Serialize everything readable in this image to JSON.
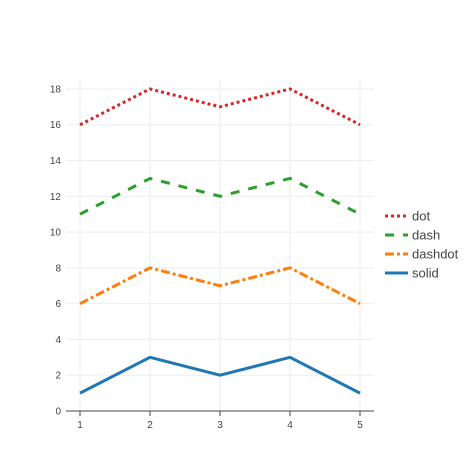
{
  "chart_data": {
    "type": "line",
    "title": "",
    "xlabel": "",
    "ylabel": "",
    "x": [
      1,
      2,
      3,
      4,
      5
    ],
    "xlim": [
      0.8,
      5.2
    ],
    "ylim": [
      0,
      18.5
    ],
    "xticks": [
      1,
      2,
      3,
      4,
      5
    ],
    "yticks": [
      0,
      2,
      4,
      6,
      8,
      10,
      12,
      14,
      16,
      18
    ],
    "grid": true,
    "legend_position": "right",
    "series": [
      {
        "name": "dot",
        "values": [
          16,
          18,
          17,
          18,
          16
        ],
        "color": "#d62728",
        "dash": "dot"
      },
      {
        "name": "dash",
        "values": [
          11,
          13,
          12,
          13,
          11
        ],
        "color": "#2ca02c",
        "dash": "dash"
      },
      {
        "name": "dashdot",
        "values": [
          6,
          8,
          7,
          8,
          6
        ],
        "color": "#ff7f0e",
        "dash": "dashdot"
      },
      {
        "name": "solid",
        "values": [
          1,
          3,
          2,
          3,
          1
        ],
        "color": "#1f77b4",
        "dash": "solid"
      }
    ]
  }
}
